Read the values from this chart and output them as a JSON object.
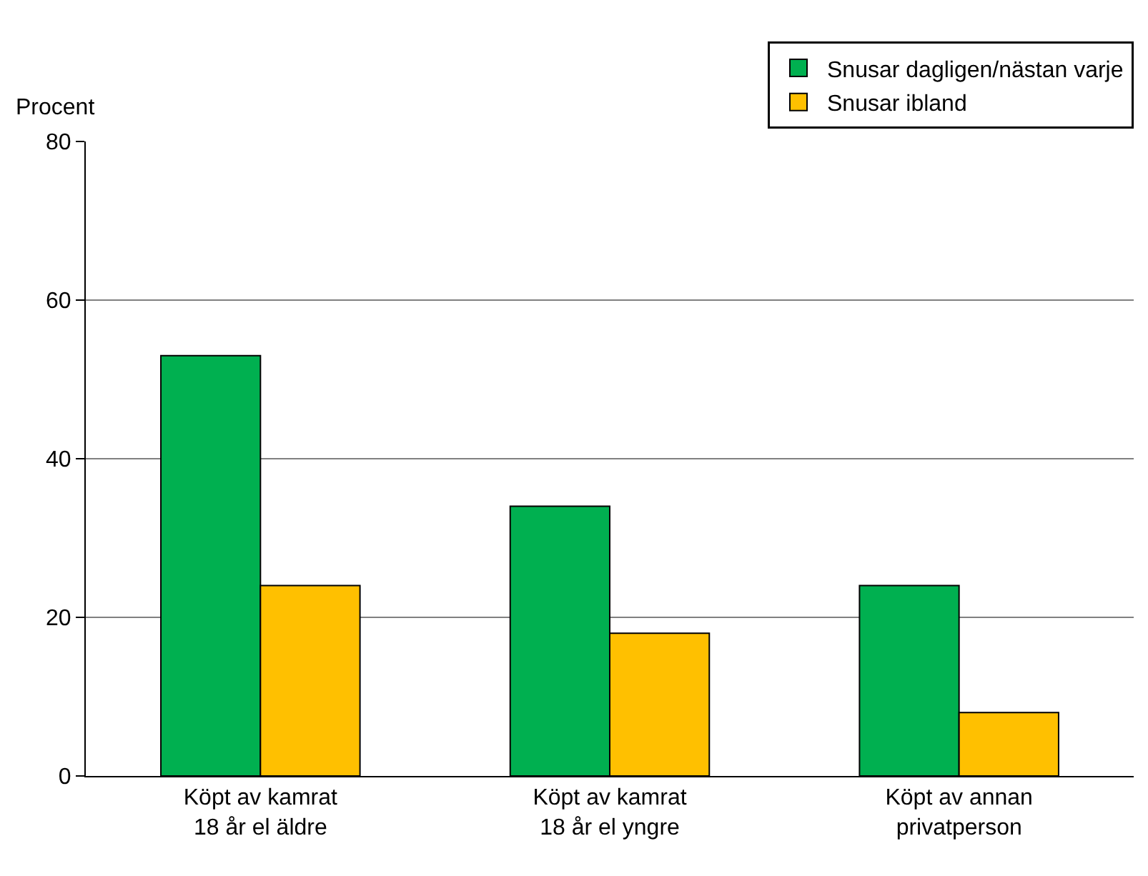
{
  "chart_data": {
    "type": "bar",
    "ylabel": "Procent",
    "categories": [
      "Köpt av kamrat\n18 år el äldre",
      "Köpt av kamrat\n18 år el yngre",
      "Köpt av annan\nprivatperson"
    ],
    "series": [
      {
        "name": "Snusar dagligen/nästan varje",
        "color": "#00b050",
        "values": [
          53,
          34,
          24
        ]
      },
      {
        "name": "Snusar ibland",
        "color": "#ffc000",
        "values": [
          24,
          18,
          8
        ]
      }
    ],
    "ylim": [
      0,
      80
    ],
    "yticks": [
      0,
      20,
      40,
      60,
      80
    ],
    "grid": "y",
    "legend": "top right"
  }
}
